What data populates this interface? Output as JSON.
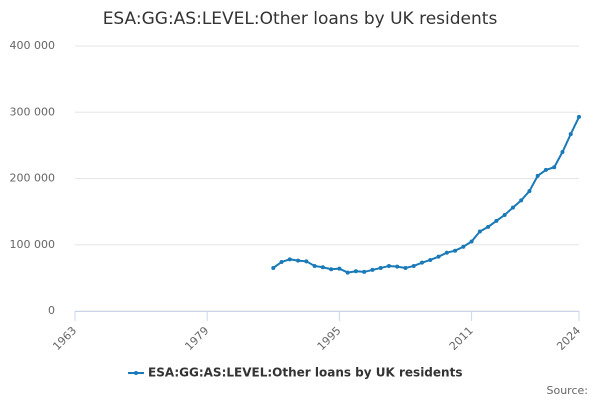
{
  "chart_data": {
    "type": "line",
    "title": "ESA:GG:AS:LEVEL:Other loans by UK residents",
    "source": "Source:",
    "x": [
      1987,
      1988,
      1989,
      1990,
      1991,
      1992,
      1993,
      1994,
      1995,
      1996,
      1997,
      1998,
      1999,
      2000,
      2001,
      2002,
      2003,
      2004,
      2005,
      2006,
      2007,
      2008,
      2009,
      2010,
      2011,
      2012,
      2013,
      2014,
      2015,
      2016,
      2017,
      2018,
      2019,
      2020,
      2021,
      2022,
      2023,
      2024
    ],
    "series": [
      {
        "name": "ESA:GG:AS:LEVEL:Other loans by UK residents",
        "color": "#1a7ab8",
        "values": [
          65000,
          74000,
          78000,
          76000,
          75000,
          68000,
          66000,
          63000,
          64000,
          58000,
          60000,
          59000,
          62000,
          65000,
          68000,
          67000,
          65000,
          68000,
          73000,
          77000,
          82000,
          88000,
          91000,
          97000,
          105000,
          120000,
          127000,
          136000,
          145000,
          156000,
          167000,
          181000,
          204000,
          213000,
          217000,
          240000,
          267000,
          293000
        ]
      }
    ],
    "xlim": [
      1963,
      2024
    ],
    "xticks": [
      1963,
      1979,
      1995,
      2011,
      2024
    ],
    "ylim": [
      0,
      400000
    ],
    "yticks": [
      0,
      {
        "value": 100000,
        "label": "100 000"
      },
      {
        "value": 200000,
        "label": "200 000"
      },
      {
        "value": 300000,
        "label": "300 000"
      },
      {
        "value": 400000,
        "label": "400 000"
      }
    ],
    "grid": true
  }
}
